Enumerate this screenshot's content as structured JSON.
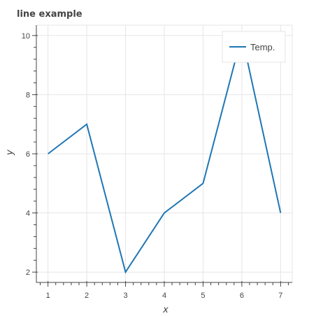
{
  "chart_data": {
    "type": "line",
    "title": "line example",
    "xlabel": "x",
    "ylabel": "y",
    "x": [
      1,
      2,
      3,
      4,
      5,
      6,
      7
    ],
    "series": [
      {
        "name": "Temp.",
        "values": [
          6,
          7,
          2,
          4,
          5,
          10,
          4
        ],
        "color": "#1f77b4"
      }
    ],
    "xlim": [
      0.7,
      7.3
    ],
    "ylim": [
      1.65,
      10.35
    ],
    "xticks": [
      "1",
      "2",
      "3",
      "4",
      "5",
      "6",
      "7"
    ],
    "yticks": [
      "2",
      "4",
      "6",
      "8",
      "10"
    ],
    "grid": true,
    "legend": {
      "placement": "top-right",
      "label": "Temp."
    }
  }
}
